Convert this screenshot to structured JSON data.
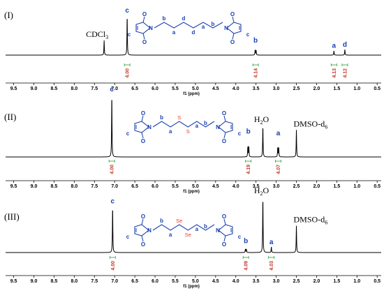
{
  "chart_data": [
    {
      "type": "line",
      "panel_label": "(I)",
      "xlabel": "f1 (ppm)",
      "xlim": [
        9.7,
        0.4
      ],
      "xticks": [
        9.5,
        9.0,
        8.5,
        8.0,
        7.5,
        7.0,
        6.5,
        6.0,
        5.5,
        5.0,
        4.5,
        4.0,
        3.5,
        3.0,
        2.5,
        2.0,
        1.5,
        1.0,
        0.5
      ],
      "peaks": [
        {
          "ppm": 7.26,
          "height": 0.37,
          "label": "CDCl3",
          "label_text": "CDCl",
          "label_sub": "3"
        },
        {
          "ppm": 6.69,
          "height": 1.0,
          "label": "c"
        },
        {
          "ppm": 3.51,
          "height": 0.25,
          "label": "b",
          "split": true
        },
        {
          "ppm": 1.57,
          "height": 0.11,
          "label": "a"
        },
        {
          "ppm": 1.3,
          "height": 0.14,
          "label": "d"
        }
      ],
      "integrals": [
        {
          "ppm": 6.69,
          "value": "4.00"
        },
        {
          "ppm": 3.51,
          "value": "4.14"
        },
        {
          "ppm": 1.57,
          "value": "4.13"
        },
        {
          "ppm": 1.3,
          "value": "4.12"
        }
      ],
      "molecule_labels": [
        "c",
        "c",
        "b",
        "b",
        "a",
        "a",
        "d",
        "d"
      ]
    },
    {
      "type": "line",
      "panel_label": "(II)",
      "xlabel": "f1 (ppm)",
      "xlim": [
        9.7,
        0.4
      ],
      "xticks": [
        9.5,
        9.0,
        8.5,
        8.0,
        7.5,
        7.0,
        6.5,
        6.0,
        5.5,
        5.0,
        4.5,
        4.0,
        3.5,
        3.0,
        2.5,
        2.0,
        1.5,
        1.0,
        0.5
      ],
      "peaks": [
        {
          "ppm": 7.07,
          "height": 1.0,
          "label": "c"
        },
        {
          "ppm": 3.69,
          "height": 0.33,
          "label": "b",
          "split": true
        },
        {
          "ppm": 3.33,
          "height": 0.5,
          "label": "H2O",
          "label_text": "H",
          "label_sub": "2",
          "label_after": "O"
        },
        {
          "ppm": 2.95,
          "height": 0.3,
          "label": "a",
          "split": true
        },
        {
          "ppm": 2.5,
          "height": 0.43,
          "label": "DMSO-d6",
          "label_text": "DMSO-d",
          "label_sub": "6"
        }
      ],
      "integrals": [
        {
          "ppm": 7.07,
          "value": "4.00"
        },
        {
          "ppm": 3.69,
          "value": "4.19"
        },
        {
          "ppm": 2.95,
          "value": "4.07"
        }
      ],
      "molecule_labels": [
        "c",
        "c",
        "b",
        "b",
        "a",
        "a",
        "S",
        "S"
      ]
    },
    {
      "type": "line",
      "panel_label": "(III)",
      "xlabel": "f1 (ppm)",
      "xlim": [
        9.7,
        0.4
      ],
      "xticks": [
        9.5,
        9.0,
        8.5,
        8.0,
        7.5,
        7.0,
        6.5,
        6.0,
        5.5,
        5.0,
        4.5,
        4.0,
        3.5,
        3.0,
        2.5,
        2.0,
        1.5,
        1.0,
        0.5
      ],
      "peaks": [
        {
          "ppm": 7.05,
          "height": 0.83,
          "label": "c"
        },
        {
          "ppm": 3.75,
          "height": 0.12,
          "label": "b",
          "split": true
        },
        {
          "ppm": 3.33,
          "height": 1.0,
          "label": "H2O",
          "label_text": "H",
          "label_sub": "2",
          "label_after": "O"
        },
        {
          "ppm": 3.12,
          "height": 0.1,
          "label": "a"
        },
        {
          "ppm": 2.5,
          "height": 0.48,
          "label": "DMSO-d6",
          "label_text": "DMSO-d",
          "label_sub": "6"
        }
      ],
      "integrals": [
        {
          "ppm": 7.05,
          "value": "4.00"
        },
        {
          "ppm": 3.75,
          "value": "4.09"
        },
        {
          "ppm": 3.12,
          "value": "4.03"
        }
      ],
      "molecule_labels": [
        "c",
        "c",
        "b",
        "b",
        "a",
        "a",
        "Se",
        "Se"
      ]
    }
  ],
  "colors": {
    "spectrum": "#000000",
    "molecule": "#1a3fb0",
    "chalcogen": "#e63d2b",
    "integral": "#c0392b",
    "integral_curve": "#2e9e3e"
  }
}
